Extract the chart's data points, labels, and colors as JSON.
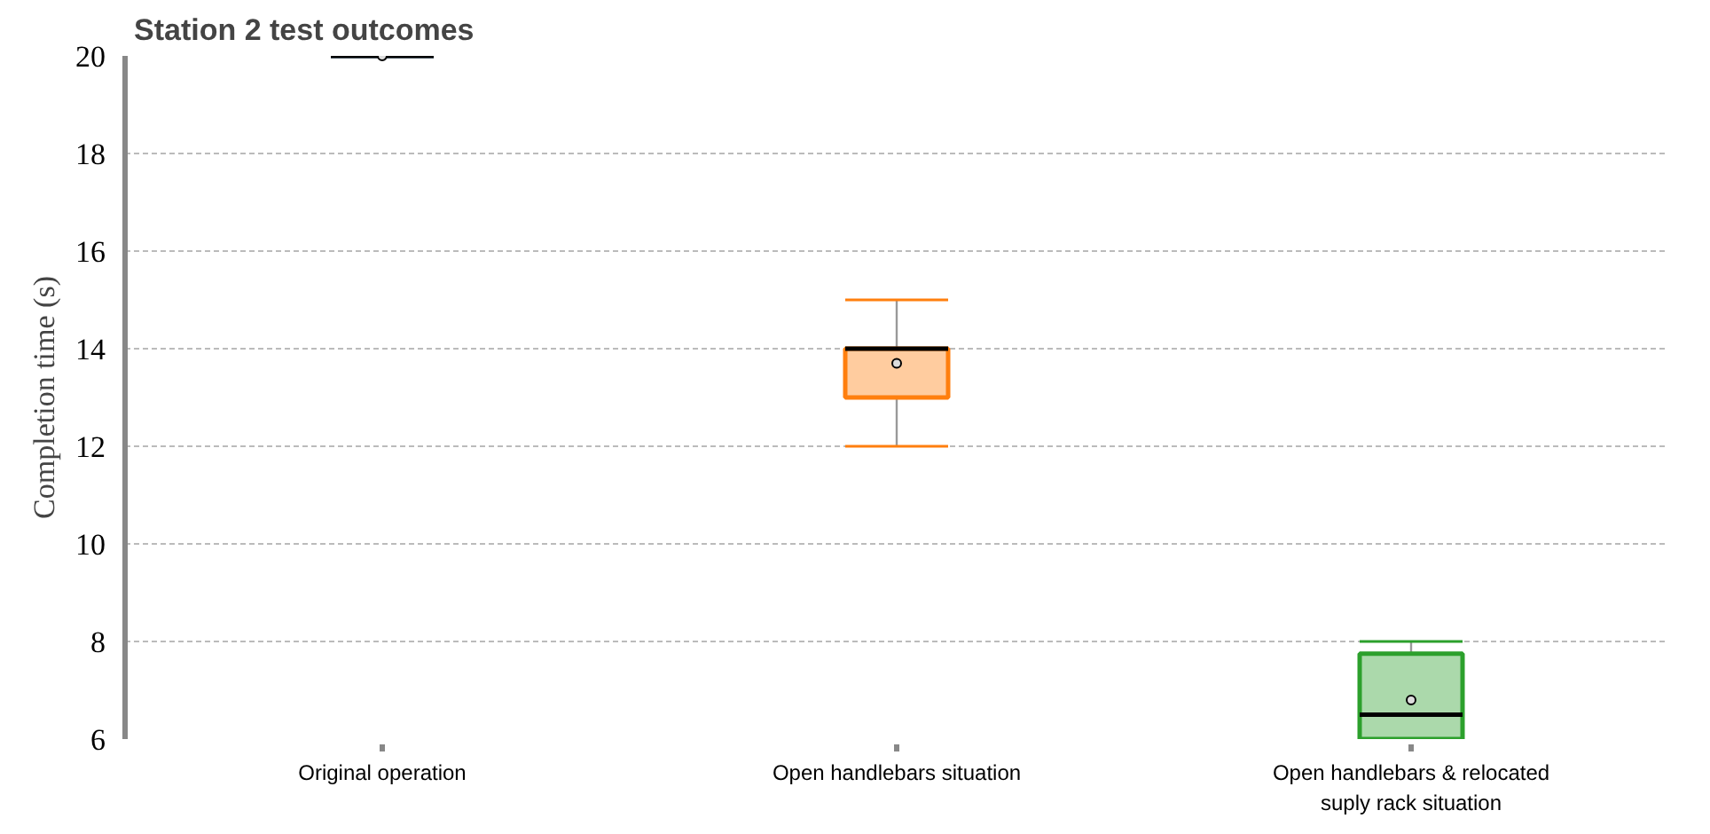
{
  "chart_data": {
    "type": "box",
    "title": "Station 2 test outcomes",
    "ylabel": "Completion time (s)",
    "categories": [
      "Original operation",
      "Open handlebars situation",
      "Open handlebars & relocated suply rack situation"
    ],
    "boxes": [
      {
        "low": 20,
        "q1": 20,
        "median": 20,
        "q3": 20,
        "high": 20,
        "mean": 20
      },
      {
        "low": 12,
        "q1": 13,
        "median": 14,
        "q3": 14,
        "high": 15,
        "mean": 13.7
      },
      {
        "low": 6,
        "q1": 6,
        "median": 6.5,
        "q3": 7.75,
        "high": 8,
        "mean": 6.8
      }
    ],
    "colors": [
      "#1f4e79",
      "#ff7f0e",
      "#2ca02c"
    ],
    "ylim": [
      6,
      20
    ],
    "yticks": [
      6,
      8,
      10,
      12,
      14,
      16,
      18,
      20
    ],
    "grid": "y"
  }
}
